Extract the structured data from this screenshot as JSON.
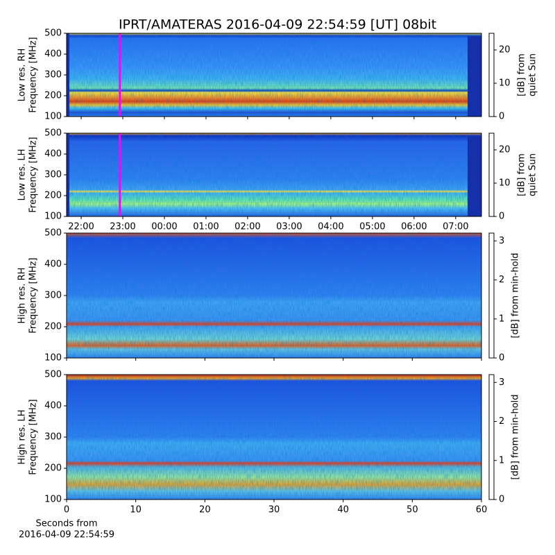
{
  "title": "IPRT/AMATERAS 2016-04-09 22:54:59 [UT]   08bit",
  "chart_data": [
    {
      "type": "heatmap",
      "ylabel": [
        "Low res. RH",
        "Frequency [MHz]"
      ],
      "xlim": [
        21.65,
        31.62
      ],
      "xticks": [
        22,
        23,
        24,
        25,
        26,
        27,
        28,
        29,
        30,
        31
      ],
      "ylim": [
        100,
        500
      ],
      "yticks": [
        100,
        200,
        300,
        400,
        500
      ],
      "marker_x": 22.93,
      "marker_color": "#ff00ff",
      "colorbar": {
        "label": [
          "[dB] from",
          "quiet Sun"
        ],
        "lim": [
          0,
          25
        ],
        "ticks": [
          0,
          10,
          20
        ],
        "colormap": "jet"
      }
    },
    {
      "type": "heatmap",
      "ylabel": [
        "Low res. LH",
        "Frequency [MHz]"
      ],
      "xlim": [
        21.65,
        31.62
      ],
      "xticks": [
        {
          "value": 22,
          "label": "22:00"
        },
        {
          "value": 23,
          "label": "23:00"
        },
        {
          "value": 24,
          "label": "00:00"
        },
        {
          "value": 25,
          "label": "01:00"
        },
        {
          "value": 26,
          "label": "02:00"
        },
        {
          "value": 27,
          "label": "03:00"
        },
        {
          "value": 28,
          "label": "04:00"
        },
        {
          "value": 29,
          "label": "05:00"
        },
        {
          "value": 30,
          "label": "06:00"
        },
        {
          "value": 31,
          "label": "07:00"
        }
      ],
      "ylim": [
        100,
        500
      ],
      "yticks": [
        100,
        200,
        300,
        400,
        500
      ],
      "marker_x": 22.93,
      "marker_color": "#ff00ff",
      "colorbar": {
        "label": [
          "[dB] from",
          "quiet Sun"
        ],
        "lim": [
          0,
          25
        ],
        "ticks": [
          0,
          10,
          20
        ],
        "colormap": "jet"
      }
    },
    {
      "type": "heatmap",
      "ylabel": [
        "High res. RH",
        "Frequency [MHz]"
      ],
      "xlim": [
        0,
        60
      ],
      "xticks": [
        0,
        10,
        20,
        30,
        40,
        50,
        60
      ],
      "xticklabels": false,
      "ylim": [
        100,
        500
      ],
      "yticks": [
        100,
        200,
        300,
        400,
        500
      ],
      "colorbar": {
        "label": [
          "[dB] from min-hold"
        ],
        "lim": [
          0,
          3.2
        ],
        "ticks": [
          0,
          1,
          2,
          3
        ],
        "colormap": "jet"
      }
    },
    {
      "type": "heatmap",
      "ylabel": [
        "High res. LH",
        "Frequency [MHz]"
      ],
      "xlabel": [
        "Seconds from",
        "2016-04-09 22:54:59"
      ],
      "xlim": [
        0,
        60
      ],
      "xticks": [
        0,
        10,
        20,
        30,
        40,
        50,
        60
      ],
      "ylim": [
        100,
        500
      ],
      "yticks": [
        100,
        200,
        300,
        400,
        500
      ],
      "colorbar": {
        "label": [
          "[dB] from min-hold"
        ],
        "lim": [
          0,
          3.2
        ],
        "ticks": [
          0,
          1,
          2,
          3
        ],
        "colormap": "jet"
      }
    }
  ]
}
